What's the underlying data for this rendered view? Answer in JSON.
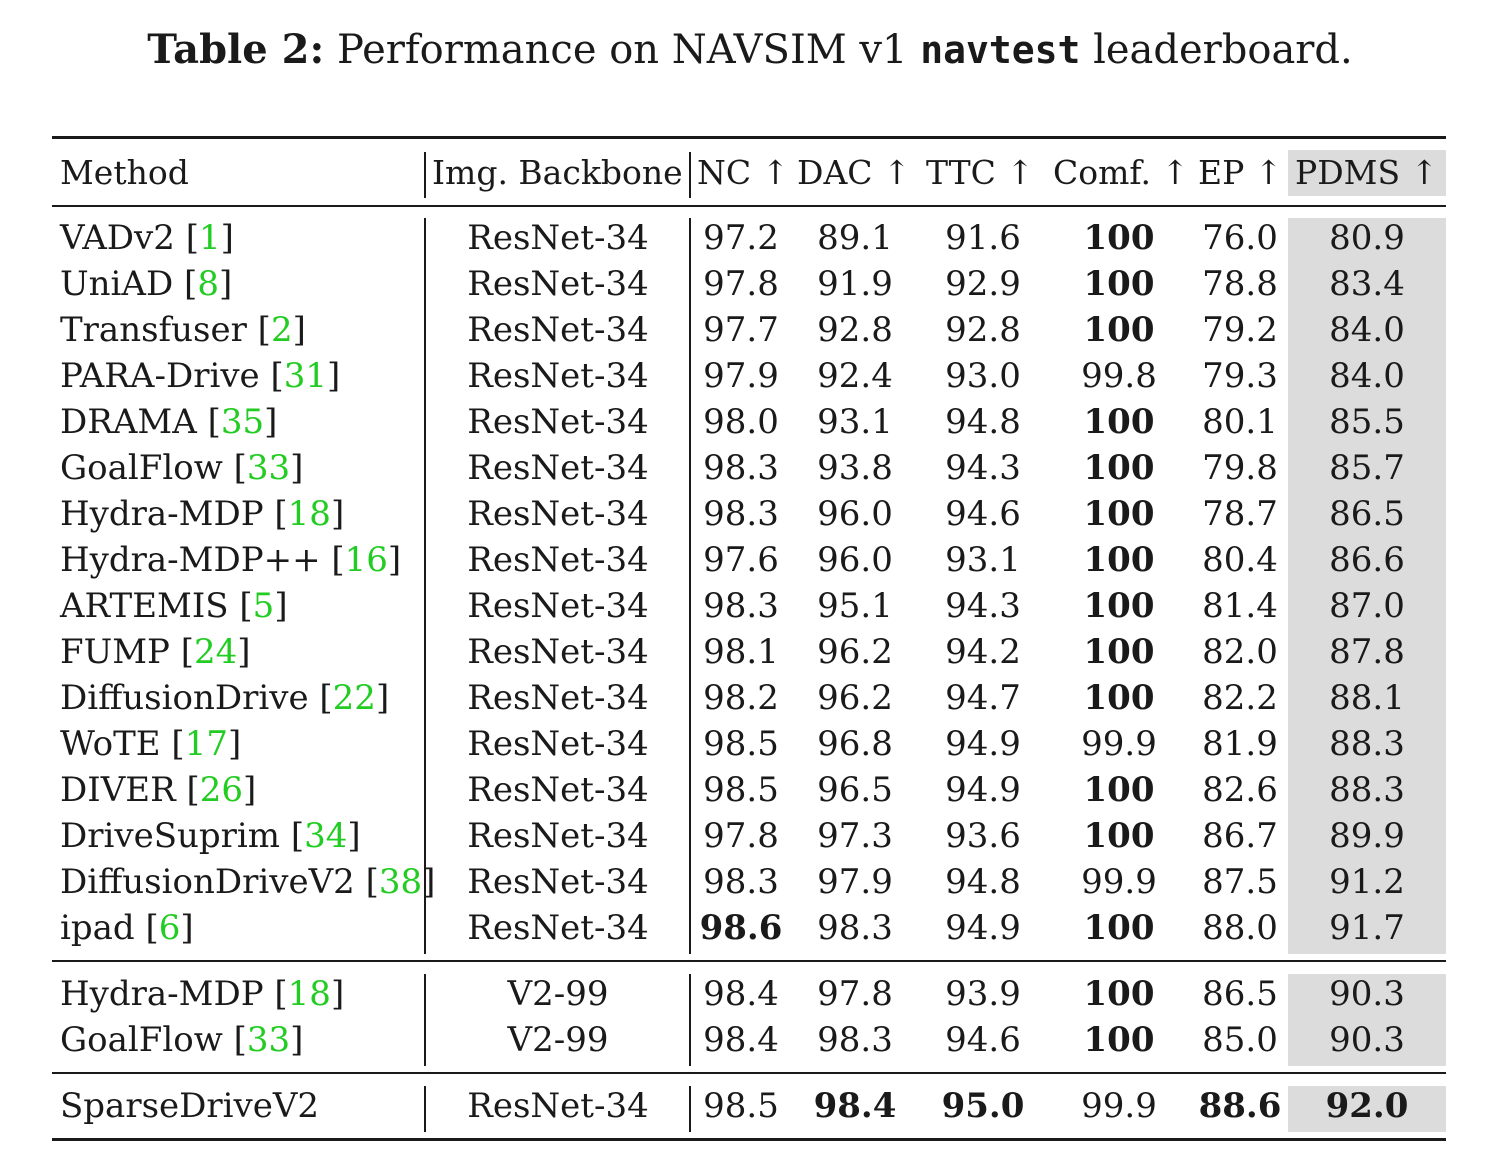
{
  "caption": {
    "label": "Table 2:",
    "text_before": "Performance on NAVSIM v1",
    "mono": "navtest",
    "text_after": "leaderboard."
  },
  "columns": [
    "Method",
    "Img. Backbone",
    "NC ↑",
    "DAC ↑",
    "TTC ↑",
    "Comf. ↑",
    "EP ↑",
    "PDMS ↑"
  ],
  "groups": [
    {
      "rows": [
        {
          "method": "VADv2",
          "cite": "1",
          "backbone": "ResNet-34",
          "nc": "97.2",
          "dac": "89.1",
          "ttc": "91.6",
          "comf": "100",
          "ep": "76.0",
          "pdms": "80.9",
          "bold": [
            "comf"
          ]
        },
        {
          "method": "UniAD",
          "cite": "8",
          "backbone": "ResNet-34",
          "nc": "97.8",
          "dac": "91.9",
          "ttc": "92.9",
          "comf": "100",
          "ep": "78.8",
          "pdms": "83.4",
          "bold": [
            "comf"
          ]
        },
        {
          "method": "Transfuser",
          "cite": "2",
          "backbone": "ResNet-34",
          "nc": "97.7",
          "dac": "92.8",
          "ttc": "92.8",
          "comf": "100",
          "ep": "79.2",
          "pdms": "84.0",
          "bold": [
            "comf"
          ]
        },
        {
          "method": "PARA-Drive",
          "cite": "31",
          "backbone": "ResNet-34",
          "nc": "97.9",
          "dac": "92.4",
          "ttc": "93.0",
          "comf": "99.8",
          "ep": "79.3",
          "pdms": "84.0",
          "bold": []
        },
        {
          "method": "DRAMA",
          "cite": "35",
          "backbone": "ResNet-34",
          "nc": "98.0",
          "dac": "93.1",
          "ttc": "94.8",
          "comf": "100",
          "ep": "80.1",
          "pdms": "85.5",
          "bold": [
            "comf"
          ]
        },
        {
          "method": "GoalFlow",
          "cite": "33",
          "backbone": "ResNet-34",
          "nc": "98.3",
          "dac": "93.8",
          "ttc": "94.3",
          "comf": "100",
          "ep": "79.8",
          "pdms": "85.7",
          "bold": [
            "comf"
          ]
        },
        {
          "method": "Hydra-MDP",
          "cite": "18",
          "backbone": "ResNet-34",
          "nc": "98.3",
          "dac": "96.0",
          "ttc": "94.6",
          "comf": "100",
          "ep": "78.7",
          "pdms": "86.5",
          "bold": [
            "comf"
          ]
        },
        {
          "method": "Hydra-MDP++",
          "cite": "16",
          "backbone": "ResNet-34",
          "nc": "97.6",
          "dac": "96.0",
          "ttc": "93.1",
          "comf": "100",
          "ep": "80.4",
          "pdms": "86.6",
          "bold": [
            "comf"
          ]
        },
        {
          "method": "ARTEMIS",
          "cite": "5",
          "backbone": "ResNet-34",
          "nc": "98.3",
          "dac": "95.1",
          "ttc": "94.3",
          "comf": "100",
          "ep": "81.4",
          "pdms": "87.0",
          "bold": [
            "comf"
          ]
        },
        {
          "method": "FUMP",
          "cite": "24",
          "backbone": "ResNet-34",
          "nc": "98.1",
          "dac": "96.2",
          "ttc": "94.2",
          "comf": "100",
          "ep": "82.0",
          "pdms": "87.8",
          "bold": [
            "comf"
          ]
        },
        {
          "method": "DiffusionDrive",
          "cite": "22",
          "backbone": "ResNet-34",
          "nc": "98.2",
          "dac": "96.2",
          "ttc": "94.7",
          "comf": "100",
          "ep": "82.2",
          "pdms": "88.1",
          "bold": [
            "comf"
          ]
        },
        {
          "method": "WoTE",
          "cite": "17",
          "backbone": "ResNet-34",
          "nc": "98.5",
          "dac": "96.8",
          "ttc": "94.9",
          "comf": "99.9",
          "ep": "81.9",
          "pdms": "88.3",
          "bold": []
        },
        {
          "method": "DIVER",
          "cite": "26",
          "backbone": "ResNet-34",
          "nc": "98.5",
          "dac": "96.5",
          "ttc": "94.9",
          "comf": "100",
          "ep": "82.6",
          "pdms": "88.3",
          "bold": [
            "comf"
          ]
        },
        {
          "method": "DriveSuprim",
          "cite": "34",
          "backbone": "ResNet-34",
          "nc": "97.8",
          "dac": "97.3",
          "ttc": "93.6",
          "comf": "100",
          "ep": "86.7",
          "pdms": "89.9",
          "bold": [
            "comf"
          ]
        },
        {
          "method": "DiffusionDriveV2",
          "cite": "38",
          "backbone": "ResNet-34",
          "nc": "98.3",
          "dac": "97.9",
          "ttc": "94.8",
          "comf": "99.9",
          "ep": "87.5",
          "pdms": "91.2",
          "bold": []
        },
        {
          "method": "ipad",
          "cite": "6",
          "backbone": "ResNet-34",
          "nc": "98.6",
          "dac": "98.3",
          "ttc": "94.9",
          "comf": "100",
          "ep": "88.0",
          "pdms": "91.7",
          "bold": [
            "nc",
            "comf"
          ]
        }
      ]
    },
    {
      "rows": [
        {
          "method": "Hydra-MDP",
          "cite": "18",
          "backbone": "V2-99",
          "nc": "98.4",
          "dac": "97.8",
          "ttc": "93.9",
          "comf": "100",
          "ep": "86.5",
          "pdms": "90.3",
          "bold": [
            "comf"
          ]
        },
        {
          "method": "GoalFlow",
          "cite": "33",
          "backbone": "V2-99",
          "nc": "98.4",
          "dac": "98.3",
          "ttc": "94.6",
          "comf": "100",
          "ep": "85.0",
          "pdms": "90.3",
          "bold": [
            "comf"
          ]
        }
      ]
    },
    {
      "rows": [
        {
          "method": "SparseDriveV2",
          "cite": "",
          "backbone": "ResNet-34",
          "nc": "98.5",
          "dac": "98.4",
          "ttc": "95.0",
          "comf": "99.9",
          "ep": "88.6",
          "pdms": "92.0",
          "bold": [
            "dac",
            "ttc",
            "ep",
            "pdms"
          ]
        }
      ]
    }
  ]
}
